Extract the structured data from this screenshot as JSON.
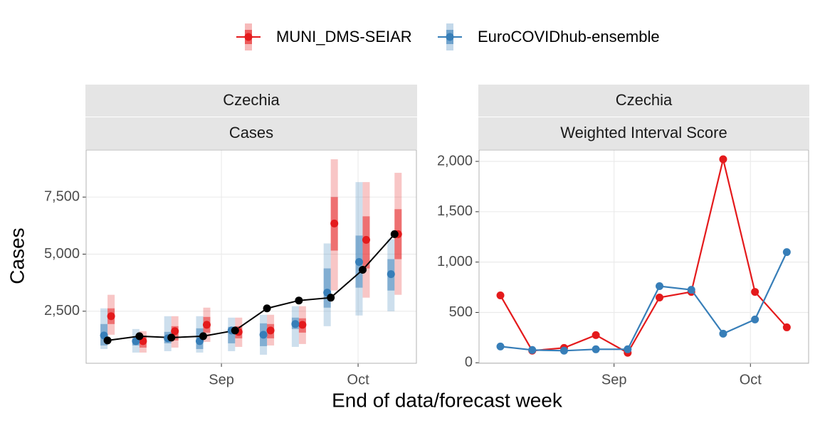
{
  "chart_data": [
    {
      "type": "forecast",
      "strips": [
        "Czechia",
        "Cases"
      ],
      "ylabel": "Cases",
      "xlabel": "End of data/forecast week",
      "legend": "top",
      "grid": true,
      "x": [
        219,
        226,
        233,
        240,
        247,
        254,
        261,
        268,
        275,
        282
      ],
      "xlim": [
        214.3,
        286.8
      ],
      "xticks": [
        {
          "value": 244,
          "label": "Sep"
        },
        {
          "value": 274,
          "label": "Oct"
        }
      ],
      "ylim": [
        219,
        9562
      ],
      "yticks": [
        {
          "value": 2500,
          "label": "2,500"
        },
        {
          "value": 5000,
          "label": "5,000"
        },
        {
          "value": 7500,
          "label": "7,500"
        }
      ],
      "observed": {
        "color": "#000000",
        "values": [
          1219,
          1406,
          1344,
          1406,
          1656,
          2625,
          2969,
          3094,
          4313,
          5875
        ]
      },
      "series": [
        {
          "name": "MUNI_DMS-SEIAR",
          "color": "#e41a1c",
          "values": [
            2281,
            1188,
            1625,
            1906,
            1594,
            1656,
            1906,
            6344,
            5625,
            5875
          ],
          "lower50": [
            1938,
            906,
            1219,
            1563,
            1313,
            1313,
            1563,
            5156,
            4375,
            4781
          ],
          "upper50": [
            2625,
            1375,
            1844,
            2250,
            1844,
            1938,
            2188,
            7500,
            6656,
            6969
          ],
          "lower90": [
            1469,
            688,
            906,
            1156,
            938,
            1000,
            1063,
            3406,
            3094,
            3219
          ],
          "upper90": [
            3219,
            1625,
            2281,
            2656,
            2219,
            2344,
            2719,
            9156,
            8156,
            8563
          ]
        },
        {
          "name": "EuroCOVIDhub-ensemble",
          "color": "#377eb8",
          "values": [
            1438,
            1188,
            1313,
            1188,
            1656,
            1469,
            1938,
            3313,
            4656,
            4125
          ],
          "lower50": [
            1000,
            1000,
            1094,
            844,
            1094,
            969,
            1719,
            2656,
            3531,
            3406
          ],
          "upper50": [
            1938,
            1313,
            1594,
            1750,
            1813,
            1969,
            2219,
            4375,
            5813,
            4781
          ],
          "lower90": [
            844,
            688,
            750,
            688,
            750,
            594,
            938,
            1844,
            2313,
            2500
          ],
          "upper90": [
            2625,
            1719,
            2281,
            2281,
            2219,
            2344,
            2719,
            5469,
            8156,
            5656
          ]
        }
      ]
    },
    {
      "type": "line",
      "strips": [
        "Czechia",
        "Weighted Interval Score"
      ],
      "grid": true,
      "x": [
        219,
        226,
        233,
        240,
        247,
        254,
        261,
        268,
        275,
        282
      ],
      "xlim": [
        214.3,
        286.8
      ],
      "xticks": [
        {
          "value": 244,
          "label": "Sep"
        },
        {
          "value": 274,
          "label": "Oct"
        }
      ],
      "ylim": [
        -5,
        2113
      ],
      "yticks": [
        0,
        500,
        {
          "value": 1000,
          "label": "1,000"
        },
        {
          "value": 1500,
          "label": "1,500"
        },
        {
          "value": 2000,
          "label": "2,000"
        }
      ],
      "series": [
        {
          "color": "#e41a1c",
          "values": [
            669,
            120,
            148,
            275,
            99,
            648,
            704,
            2021,
            704,
            352
          ]
        },
        {
          "color": "#377eb8",
          "values": [
            162,
            127,
            120,
            134,
            134,
            761,
            725,
            289,
            430,
            1099
          ]
        }
      ]
    }
  ]
}
